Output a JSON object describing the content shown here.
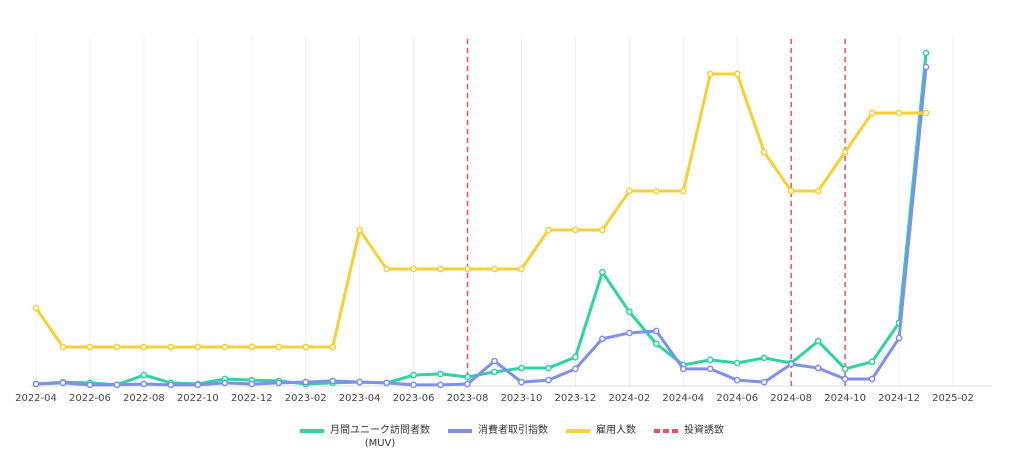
{
  "chart_data": {
    "type": "line",
    "x": [
      "2022-04",
      "2022-05",
      "2022-06",
      "2022-07",
      "2022-08",
      "2022-09",
      "2022-10",
      "2022-11",
      "2022-12",
      "2023-01",
      "2023-02",
      "2023-03",
      "2023-04",
      "2023-05",
      "2023-06",
      "2023-07",
      "2023-08",
      "2023-09",
      "2023-10",
      "2023-11",
      "2023-12",
      "2024-01",
      "2024-02",
      "2024-03",
      "2024-04",
      "2024-05",
      "2024-06",
      "2024-07",
      "2024-08",
      "2024-09",
      "2024-10",
      "2024-11",
      "2024-12",
      "2025-01"
    ],
    "series": [
      {
        "name": "月間ユニーク訪問者数\n(MUV)",
        "color": "#2ed3a0",
        "values": [
          0.05,
          0.1,
          0.08,
          0.03,
          0.28,
          0.08,
          0.05,
          0.18,
          0.15,
          0.13,
          0.05,
          0.08,
          0.1,
          0.08,
          0.28,
          0.31,
          0.23,
          0.36,
          0.46,
          0.46,
          0.74,
          2.92,
          1.9,
          1.08,
          0.54,
          0.67,
          0.59,
          0.72,
          0.59,
          1.15,
          0.44,
          0.62,
          1.62,
          8.54
        ]
      },
      {
        "name": "消費者取引指数",
        "color": "#7f8ff0",
        "values": [
          0.05,
          0.08,
          0.03,
          0.03,
          0.05,
          0.03,
          0.03,
          0.08,
          0.05,
          0.08,
          0.1,
          0.13,
          0.1,
          0.08,
          0.03,
          0.03,
          0.05,
          0.64,
          0.1,
          0.15,
          0.44,
          1.21,
          1.36,
          1.41,
          0.44,
          0.44,
          0.15,
          0.1,
          0.56,
          0.46,
          0.18,
          0.18,
          1.23,
          8.18
        ]
      },
      {
        "name": "雇用人数",
        "color": "#f7d038",
        "values": [
          2,
          1,
          1,
          1,
          1,
          1,
          1,
          1,
          1,
          1,
          1,
          1,
          4,
          3,
          3,
          3,
          3,
          3,
          3,
          4,
          4,
          4,
          5,
          5,
          5,
          8,
          8,
          6,
          5,
          5,
          6,
          7,
          7,
          7
        ]
      }
    ],
    "events": {
      "name": "投資誘致",
      "color": "#e8505b",
      "x": [
        "2023-08",
        "2024-08",
        "2024-10"
      ]
    },
    "xlim": [
      "2022-04",
      "2025-02"
    ],
    "xticks": [
      "2022-04",
      "2022-06",
      "2022-08",
      "2022-10",
      "2022-12",
      "2023-02",
      "2023-04",
      "2023-06",
      "2023-08",
      "2023-10",
      "2023-12",
      "2024-02",
      "2024-04",
      "2024-06",
      "2024-08",
      "2024-10",
      "2024-12",
      "2025-02"
    ],
    "ylim": [
      0,
      9
    ],
    "grid": true
  }
}
